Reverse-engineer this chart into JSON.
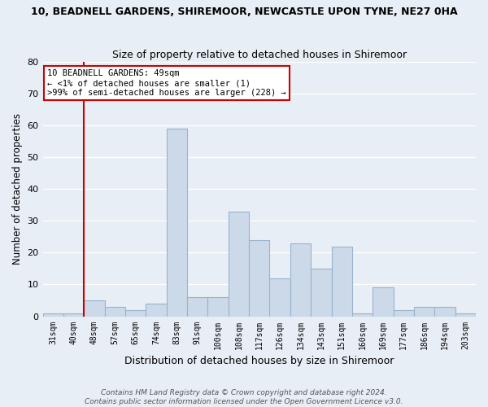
{
  "title": "10, BEADNELL GARDENS, SHIREMOOR, NEWCASTLE UPON TYNE, NE27 0HA",
  "subtitle": "Size of property relative to detached houses in Shiremoor",
  "xlabel": "Distribution of detached houses by size in Shiremoor",
  "ylabel": "Number of detached properties",
  "bar_color": "#ccd9e8",
  "bar_edgecolor": "#99b3cc",
  "categories": [
    "31sqm",
    "40sqm",
    "48sqm",
    "57sqm",
    "65sqm",
    "74sqm",
    "83sqm",
    "91sqm",
    "100sqm",
    "108sqm",
    "117sqm",
    "126sqm",
    "134sqm",
    "143sqm",
    "151sqm",
    "160sqm",
    "169sqm",
    "177sqm",
    "186sqm",
    "194sqm",
    "203sqm"
  ],
  "values": [
    1,
    1,
    5,
    3,
    2,
    4,
    59,
    6,
    6,
    33,
    24,
    12,
    23,
    15,
    22,
    1,
    9,
    2,
    3,
    3,
    1
  ],
  "ylim": [
    0,
    80
  ],
  "yticks": [
    0,
    10,
    20,
    30,
    40,
    50,
    60,
    70,
    80
  ],
  "vline_idx": 2,
  "vline_color": "#cc0000",
  "annotation_line1": "10 BEADNELL GARDENS: 49sqm",
  "annotation_line2": "← <1% of detached houses are smaller (1)",
  "annotation_line3": ">99% of semi-detached houses are larger (228) →",
  "annotation_box_color": "#ffffff",
  "annotation_box_edgecolor": "#cc0000",
  "footer1": "Contains HM Land Registry data © Crown copyright and database right 2024.",
  "footer2": "Contains public sector information licensed under the Open Government Licence v3.0.",
  "background_color": "#e8eef5",
  "grid_color": "#ffffff",
  "title_fontsize": 9,
  "subtitle_fontsize": 9
}
